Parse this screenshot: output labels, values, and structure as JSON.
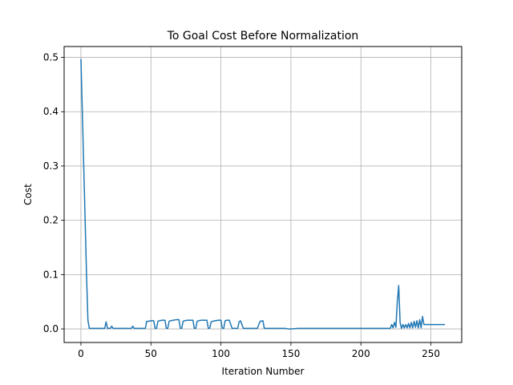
{
  "chart_data": {
    "type": "line",
    "title": "To Goal Cost Before Normalization",
    "xlabel": "Iteration Number",
    "ylabel": "Cost",
    "xlim": [
      -12,
      272
    ],
    "ylim": [
      -0.025,
      0.52
    ],
    "grid": true,
    "x_ticks": [
      0,
      50,
      100,
      150,
      200,
      250
    ],
    "y_ticks": [
      0.0,
      0.1,
      0.2,
      0.3,
      0.4,
      0.5
    ],
    "x_tick_labels": [
      "0",
      "50",
      "100",
      "150",
      "200",
      "250"
    ],
    "y_tick_labels": [
      "0.0",
      "0.1",
      "0.2",
      "0.3",
      "0.4",
      "0.5"
    ],
    "line_color": "#1f77b4",
    "grid_color": "#b0b0b0",
    "series": [
      {
        "x": [
          0,
          1,
          2,
          3,
          4,
          5,
          6,
          8,
          10,
          12,
          14,
          16,
          17,
          18,
          19,
          20,
          21,
          22,
          23,
          24,
          26,
          28,
          30,
          32,
          34,
          35,
          36,
          37,
          38,
          40,
          42,
          44,
          46,
          47,
          48,
          50,
          52,
          53,
          54,
          55,
          56,
          58,
          60,
          61,
          62,
          63,
          64,
          66,
          68,
          70,
          71,
          72,
          73,
          74,
          76,
          78,
          80,
          81,
          82,
          83,
          84,
          86,
          88,
          90,
          91,
          92,
          93,
          94,
          96,
          98,
          100,
          101,
          102,
          103,
          104,
          106,
          108,
          110,
          111,
          112,
          113,
          114,
          116,
          118,
          120,
          121,
          122,
          123,
          124,
          126,
          128,
          130,
          131,
          132,
          133,
          134,
          136,
          138,
          140,
          142,
          144,
          146,
          148,
          150,
          155,
          160,
          170,
          180,
          190,
          200,
          210,
          220,
          221,
          222,
          223,
          224,
          225,
          226,
          227,
          228,
          229,
          230,
          231,
          232,
          233,
          234,
          235,
          236,
          237,
          238,
          239,
          240,
          241,
          242,
          243,
          244,
          245,
          246,
          248,
          250,
          255,
          260
        ],
        "y": [
          0.497,
          0.4,
          0.3,
          0.2,
          0.1,
          0.016,
          0.001,
          0.001,
          0.001,
          0.001,
          0.001,
          0.001,
          0.001,
          0.013,
          0.001,
          0.001,
          0.001,
          0.005,
          0.001,
          0.001,
          0.001,
          0.001,
          0.001,
          0.001,
          0.001,
          0.001,
          0.001,
          0.005,
          0.001,
          0.001,
          0.001,
          0.001,
          0.001,
          0.014,
          0.014,
          0.015,
          0.015,
          0.001,
          0.001,
          0.014,
          0.015,
          0.016,
          0.016,
          0.001,
          0.001,
          0.014,
          0.015,
          0.016,
          0.017,
          0.017,
          0.001,
          0.001,
          0.014,
          0.015,
          0.016,
          0.016,
          0.016,
          0.001,
          0.001,
          0.014,
          0.015,
          0.016,
          0.016,
          0.016,
          0.001,
          0.001,
          0.013,
          0.014,
          0.015,
          0.016,
          0.016,
          0.001,
          0.001,
          0.015,
          0.016,
          0.016,
          0.001,
          0.001,
          0.001,
          0.001,
          0.013,
          0.015,
          0.001,
          0.001,
          0.001,
          0.001,
          0.001,
          0.001,
          0.001,
          0.001,
          0.014,
          0.015,
          0.001,
          0.001,
          0.001,
          0.001,
          0.001,
          0.001,
          0.001,
          0.001,
          0.001,
          0.001,
          0.0,
          0.0,
          0.001,
          0.001,
          0.001,
          0.001,
          0.001,
          0.001,
          0.001,
          0.001,
          0.001,
          0.008,
          0.002,
          0.012,
          0.003,
          0.05,
          0.08,
          0.012,
          0.001,
          0.008,
          0.002,
          0.008,
          0.002,
          0.01,
          0.002,
          0.012,
          0.002,
          0.014,
          0.003,
          0.015,
          0.002,
          0.017,
          0.002,
          0.023,
          0.008,
          0.008,
          0.008,
          0.008,
          0.008,
          0.008
        ]
      }
    ]
  }
}
